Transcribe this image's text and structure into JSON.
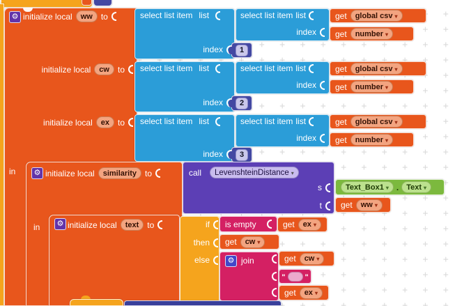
{
  "colors": {
    "variables_orange": "#E8561C",
    "lists_blue": "#2B9DD8",
    "math_indigo": "#4348A2",
    "procedures_purple": "#5C3FB5",
    "components_green": "#7CB93E",
    "text_magenta": "#D42063",
    "control_amber": "#F5A41D"
  },
  "labels": {
    "initialize_local": "initialize local",
    "to": "to",
    "in": "in",
    "select_list_item": "select list item",
    "list": "list",
    "index": "index",
    "get": "get",
    "call": "call",
    "dot": "."
  },
  "block_a": {
    "rows": [
      {
        "var": "ww",
        "list_getter": "global csv",
        "index_getter": "number",
        "index_value": "1"
      },
      {
        "var": "cw",
        "list_getter": "global csv",
        "index_getter": "number",
        "index_value": "2"
      },
      {
        "var": "ex",
        "list_getter": "global csv",
        "index_getter": "number",
        "index_value": "3"
      }
    ]
  },
  "similarity_block": {
    "var": "similarity"
  },
  "call_block": {
    "procedure": "LevenshteinDistance",
    "params": {
      "s": "s",
      "t": "t"
    },
    "arg_s": {
      "component": "Text_Box1",
      "property": "Text"
    },
    "arg_t": "ww"
  },
  "text_block": {
    "var": "text"
  },
  "if_block": {
    "if": "if",
    "then": "then",
    "else": "else"
  },
  "condition": {
    "op": "is empty",
    "arg": "ex"
  },
  "then_value": {
    "getter": "cw"
  },
  "else_value": {
    "op": "join",
    "args": {
      "first": "cw",
      "separator": " ",
      "third": "ex"
    }
  }
}
